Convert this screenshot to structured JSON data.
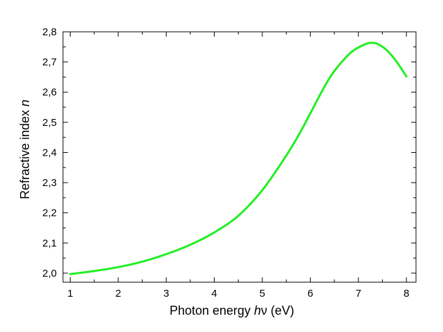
{
  "chart_data": {
    "type": "line",
    "title": "",
    "xlabel": {
      "prefix": "Photon energy ",
      "italic": "h",
      "symbol": "ν",
      "suffix": " (eV)"
    },
    "ylabel": {
      "prefix": "Refractive index ",
      "italic": "n"
    },
    "xlim": [
      0.85,
      8.2
    ],
    "ylim": [
      1.97,
      2.8
    ],
    "x_ticks": [
      1,
      2,
      3,
      4,
      5,
      6,
      7,
      8
    ],
    "x_tick_labels": [
      "1",
      "2",
      "3",
      "4",
      "5",
      "6",
      "7",
      "8"
    ],
    "y_ticks": [
      2.0,
      2.1,
      2.2,
      2.3,
      2.4,
      2.5,
      2.6,
      2.7,
      2.8
    ],
    "y_tick_labels": [
      "2,0",
      "2,1",
      "2,2",
      "2,3",
      "2,4",
      "2,5",
      "2,6",
      "2,7",
      "2,8"
    ],
    "grid": false,
    "line_color": "#22ee22",
    "series": [
      {
        "x": [
          1.0,
          1.5,
          2.0,
          2.5,
          3.0,
          3.5,
          4.0,
          4.5,
          5.0,
          5.5,
          5.8,
          6.0,
          6.3,
          6.5,
          6.8,
          7.0,
          7.2,
          7.3,
          7.4,
          7.6,
          7.8,
          8.0
        ],
        "y": [
          1.997,
          2.007,
          2.02,
          2.038,
          2.063,
          2.094,
          2.135,
          2.19,
          2.275,
          2.39,
          2.47,
          2.53,
          2.62,
          2.67,
          2.725,
          2.748,
          2.762,
          2.763,
          2.76,
          2.738,
          2.7,
          2.652
        ]
      }
    ]
  }
}
